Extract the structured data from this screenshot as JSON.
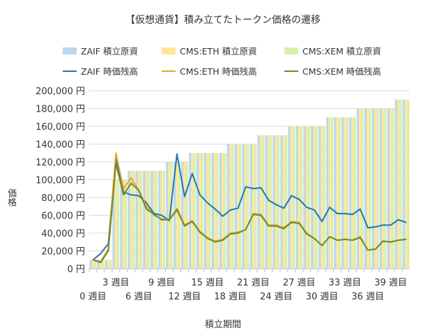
{
  "chart_data": {
    "type": "bar+line",
    "title": "【仮想通貨】積み立てたトークン価格の遷移",
    "xlabel": "積立期間",
    "ylabel": "価格",
    "ylim": [
      0,
      200000
    ],
    "yticks": [
      "0 円",
      "20,000 円",
      "40,000 円",
      "60,000 円",
      "80,000 円",
      "100,000 円",
      "120,000 円",
      "140,000 円",
      "160,000 円",
      "180,000 円",
      "200,000 円"
    ],
    "categories": [
      "0 週目",
      "1 週目",
      "2 週目",
      "3 週目",
      "4 週目",
      "5 週目",
      "6 週目",
      "7 週目",
      "8 週目",
      "9 週目",
      "10 週目",
      "11 週目",
      "12 週目",
      "13 週目",
      "14 週目",
      "15 週目",
      "16 週目",
      "17 週目",
      "18 週目",
      "19 週目",
      "20 週目",
      "21 週目",
      "22 週目",
      "23 週目",
      "24 週目",
      "25 週目",
      "26 週目",
      "27 週目",
      "28 週目",
      "29 週目",
      "30 週目",
      "31 週目",
      "32 週目",
      "33 週目",
      "34 週目",
      "35 週目",
      "36 週目",
      "37 週目",
      "38 週目",
      "39 週目",
      "40 週目",
      "41 週目"
    ],
    "grid": true,
    "legend": "top",
    "series": [
      {
        "name": "ZAIF  積立原資",
        "kind": "bar",
        "color": "#bdd7ee",
        "values": [
          10000,
          10000,
          10000,
          100000,
          100000,
          110000,
          110000,
          110000,
          110000,
          110000,
          120000,
          120000,
          120000,
          130000,
          130000,
          130000,
          130000,
          130000,
          140000,
          140000,
          140000,
          140000,
          150000,
          150000,
          150000,
          150000,
          160000,
          160000,
          160000,
          160000,
          160000,
          170000,
          170000,
          170000,
          170000,
          180000,
          180000,
          180000,
          180000,
          180000,
          190000,
          190000
        ]
      },
      {
        "name": "CMS:ETH  積立原資",
        "kind": "bar",
        "color": "#ffe699",
        "values": [
          10000,
          10000,
          10000,
          100000,
          100000,
          110000,
          110000,
          110000,
          110000,
          110000,
          120000,
          120000,
          120000,
          130000,
          130000,
          130000,
          130000,
          130000,
          140000,
          140000,
          140000,
          140000,
          150000,
          150000,
          150000,
          150000,
          160000,
          160000,
          160000,
          160000,
          160000,
          170000,
          170000,
          170000,
          170000,
          180000,
          180000,
          180000,
          180000,
          180000,
          190000,
          190000
        ]
      },
      {
        "name": "CMS:XEM  積立原資",
        "kind": "bar",
        "color": "#d6f0b2",
        "values": [
          10000,
          10000,
          10000,
          100000,
          100000,
          110000,
          110000,
          110000,
          110000,
          110000,
          120000,
          120000,
          120000,
          130000,
          130000,
          130000,
          130000,
          130000,
          140000,
          140000,
          140000,
          140000,
          150000,
          150000,
          150000,
          150000,
          160000,
          160000,
          160000,
          160000,
          160000,
          170000,
          170000,
          170000,
          170000,
          180000,
          180000,
          180000,
          180000,
          180000,
          190000,
          190000
        ]
      },
      {
        "name": "ZAIF  時価残高",
        "kind": "line",
        "color": "#1f77b4",
        "values": [
          10000,
          17000,
          28000,
          125000,
          86000,
          83000,
          82000,
          74000,
          62000,
          60000,
          54000,
          129000,
          81000,
          107000,
          83000,
          74000,
          67000,
          59000,
          66000,
          68000,
          92000,
          90000,
          91000,
          77000,
          72000,
          68000,
          82000,
          78000,
          69000,
          66000,
          53000,
          69000,
          62000,
          62000,
          61000,
          67000,
          46000,
          47000,
          49000,
          49000,
          55000,
          52000
        ]
      },
      {
        "name": "CMS:ETH  時価残高",
        "kind": "line",
        "color": "#f0a030",
        "values": [
          10000,
          8000,
          22000,
          130000,
          90000,
          102000,
          88000,
          70000,
          60000,
          56000,
          55000,
          68000,
          49000,
          54000,
          42000,
          35000,
          31000,
          33000,
          40000,
          41000,
          44000,
          62000,
          61000,
          49000,
          49000,
          46000,
          53000,
          52000,
          40000,
          34000,
          26000,
          36000,
          32000,
          33000,
          32000,
          36000,
          21000,
          22000,
          31000,
          30000,
          32000,
          33000
        ]
      },
      {
        "name": "CMS:XEM  時価残高",
        "kind": "line",
        "color": "#6b8e23",
        "values": [
          10000,
          7000,
          20000,
          118000,
          83000,
          96000,
          88000,
          67000,
          61000,
          55000,
          55000,
          66000,
          48000,
          53000,
          41000,
          34000,
          30000,
          32000,
          39000,
          40000,
          44000,
          61000,
          60000,
          48000,
          48000,
          45000,
          52000,
          51000,
          39000,
          34000,
          26000,
          36000,
          32000,
          33000,
          32000,
          35000,
          21000,
          22000,
          31000,
          30000,
          32000,
          33000
        ]
      }
    ]
  }
}
